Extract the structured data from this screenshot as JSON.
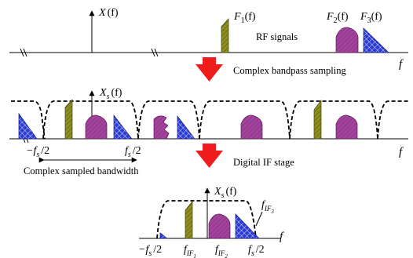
{
  "panel1": {
    "spectrum_symbol": "X",
    "spectrum_arg": "(f)",
    "f1_letter": "F",
    "f1_sub": "1",
    "f1_arg": "(f)",
    "f2_letter": "F",
    "f2_sub": "2",
    "f2_arg": "(f)",
    "f3_letter": "F",
    "f3_sub": "3",
    "f3_arg": "(f)",
    "signals_caption": "RF signals",
    "axis_var": "f"
  },
  "step1": {
    "caption": "Complex bandpass sampling"
  },
  "panel2": {
    "spectrum_symbol": "X",
    "spectrum_sub": "s",
    "spectrum_arg": "(f)",
    "neg_edge": "−f",
    "neg_edge_sub": "s",
    "neg_edge_tail": "/2",
    "pos_edge": "f",
    "pos_edge_sub": "s",
    "pos_edge_tail": "/2",
    "bandwidth_caption": "Complex sampled bandwidth",
    "axis_var": "f"
  },
  "step2": {
    "caption": "Digital IF stage"
  },
  "panel3": {
    "spectrum_symbol": "X",
    "spectrum_sub": "s",
    "spectrum_arg": "(f)",
    "if3_letter": "f",
    "if3_sub": "IF",
    "if3_subsub": "3",
    "neg_edge": "−f",
    "neg_edge_sub": "s",
    "neg_edge_tail": "/2",
    "if1_letter": "f",
    "if1_sub": "IF",
    "if1_subsub": "1",
    "if2_letter": "f",
    "if2_sub": "IF",
    "if2_subsub": "2",
    "pos_edge": "f",
    "pos_edge_sub": "s",
    "pos_edge_tail": "/2",
    "axis_var": "f"
  },
  "colors": {
    "olive": "#888a1e",
    "purple": "#a0409a",
    "blue": "#2a3bd0",
    "arrow_red": "#ee1c1c"
  }
}
